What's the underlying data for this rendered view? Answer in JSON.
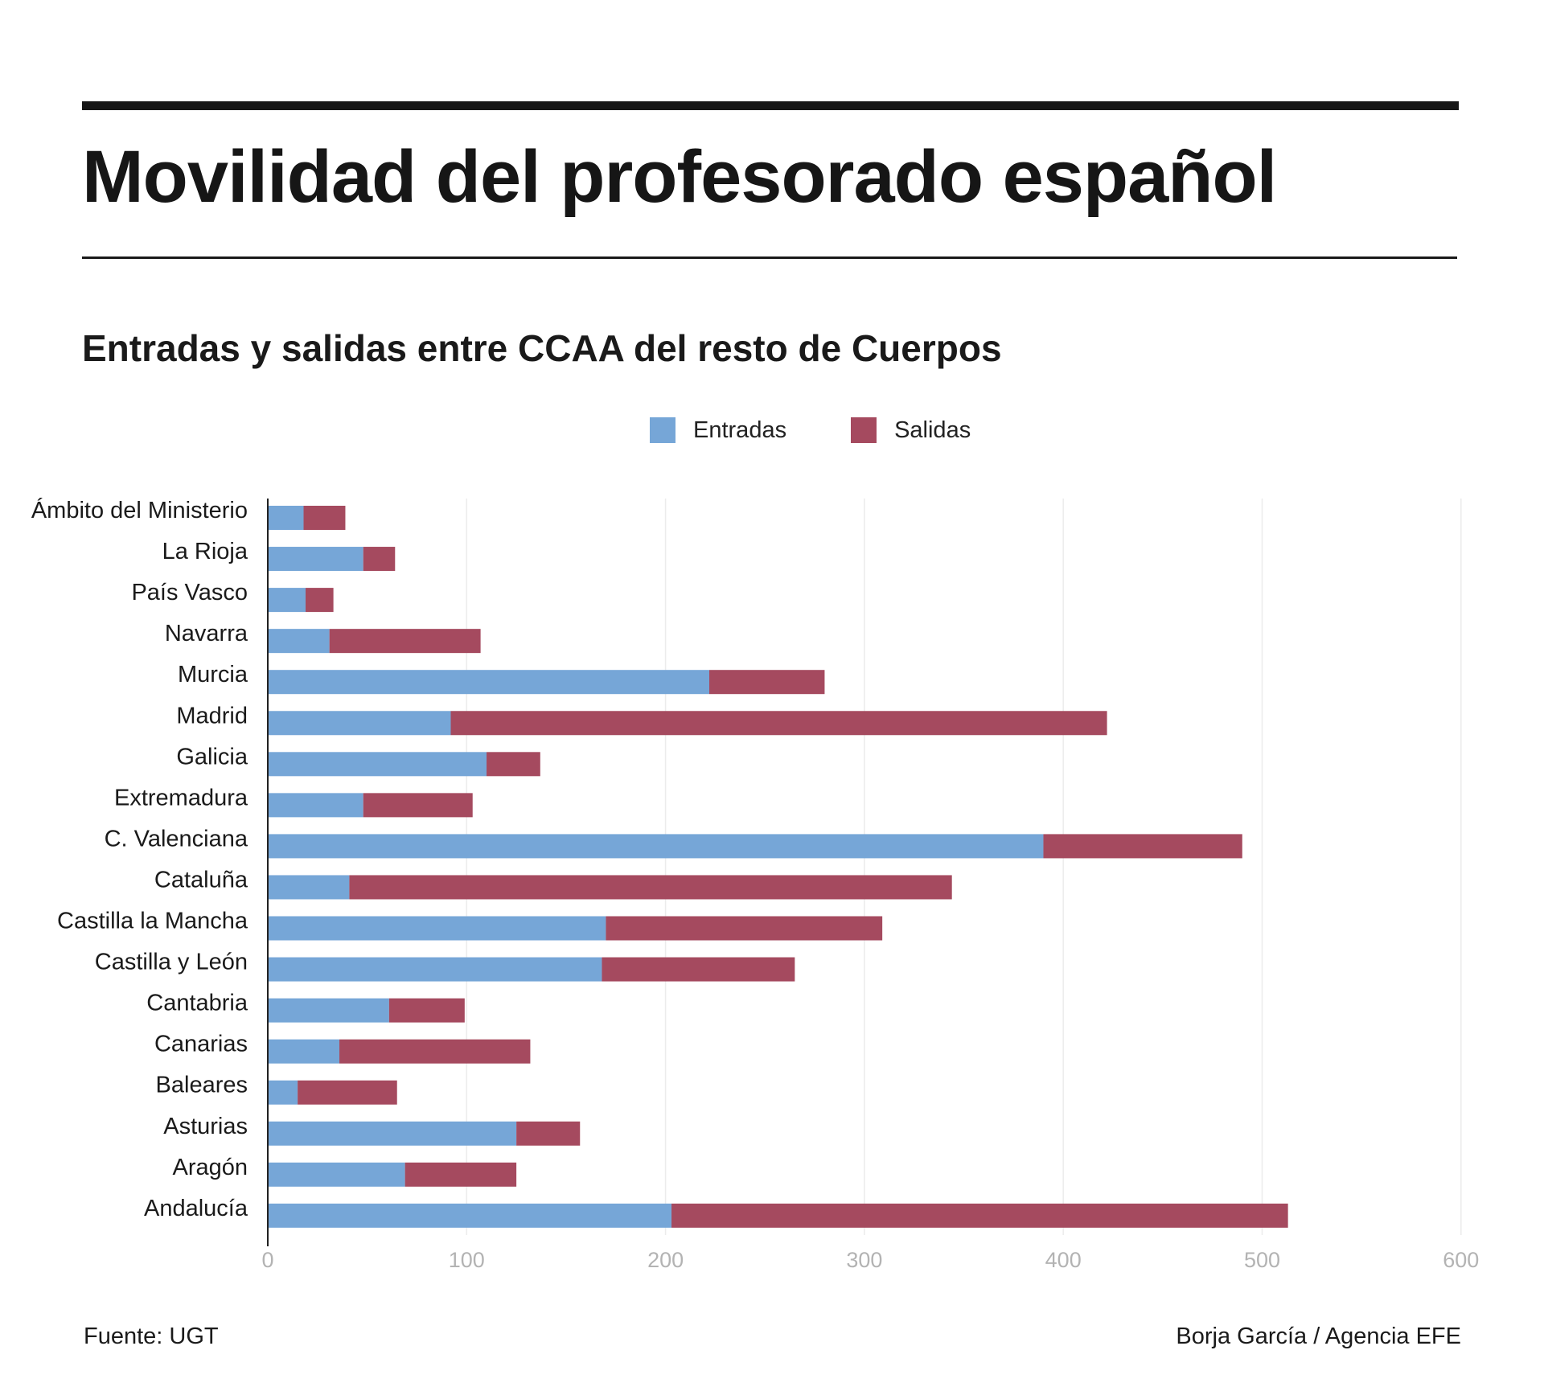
{
  "header": {
    "title": "Movilidad del profesorado español",
    "subtitle": "Entradas y salidas entre CCAA del resto de Cuerpos"
  },
  "legend": [
    {
      "label": "Entradas",
      "color": "#76a6d7"
    },
    {
      "label": "Salidas",
      "color": "#a54a5f"
    }
  ],
  "footer": {
    "source": "Fuente: UGT",
    "credit": "Borja García / Agencia EFE"
  },
  "chart_data": {
    "type": "bar",
    "orientation": "horizontal",
    "stacked": true,
    "title": "Entradas y salidas entre CCAA del resto de Cuerpos",
    "xlabel": "",
    "ylabel": "",
    "xlim": [
      0,
      600
    ],
    "xticks": [
      0,
      100,
      200,
      300,
      400,
      500,
      600
    ],
    "grid": true,
    "legend_position": "top-center",
    "categories": [
      "Ámbito del Ministerio",
      "La Rioja",
      "País Vasco",
      "Navarra",
      "Murcia",
      "Madrid",
      "Galicia",
      "Extremadura",
      "C. Valenciana",
      "Cataluña",
      "Castilla la Mancha",
      "Castilla y León",
      "Cantabria",
      "Canarias",
      "Baleares",
      "Asturias",
      "Aragón",
      "Andalucía"
    ],
    "series": [
      {
        "name": "Entradas",
        "color": "#76a6d7",
        "values": [
          18,
          48,
          19,
          31,
          222,
          92,
          110,
          48,
          390,
          41,
          170,
          168,
          61,
          36,
          15,
          125,
          69,
          203
        ]
      },
      {
        "name": "Salidas",
        "color": "#a54a5f",
        "values": [
          21,
          16,
          14,
          76,
          58,
          330,
          27,
          55,
          100,
          303,
          139,
          97,
          38,
          96,
          50,
          32,
          56,
          310
        ]
      }
    ]
  }
}
